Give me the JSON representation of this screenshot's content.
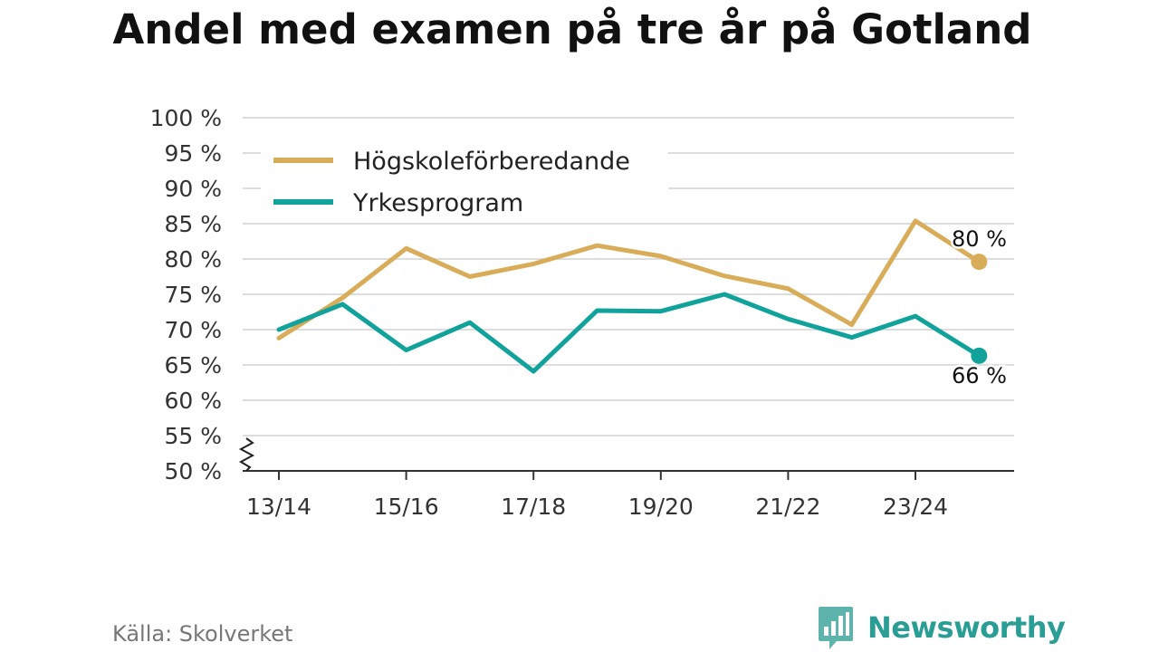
{
  "colors": {
    "series_1": "#d9ac59",
    "series_2": "#11a39b",
    "brand": "#2a9d94",
    "grid": "#dddddd",
    "axis": "#333333"
  },
  "chart_data": {
    "type": "line",
    "title": "Andel med examen på tre år på Gotland",
    "xlabel": "",
    "ylabel": "",
    "x": [
      "13/14",
      "14/15",
      "15/16",
      "16/17",
      "17/18",
      "18/19",
      "19/20",
      "20/21",
      "21/22",
      "22/23",
      "23/24",
      "24/25"
    ],
    "x_tick_labels": [
      "13/14",
      "15/16",
      "17/18",
      "19/20",
      "21/22",
      "23/24"
    ],
    "ylim": [
      50,
      100
    ],
    "y_ticks": [
      50,
      55,
      60,
      65,
      70,
      75,
      80,
      85,
      90,
      95,
      100
    ],
    "y_tick_labels": [
      "50 %",
      "55 %",
      "60 %",
      "65 %",
      "70 %",
      "75 %",
      "80 %",
      "85 %",
      "90 %",
      "95 %",
      "100 %"
    ],
    "grid": true,
    "y_axis_break": true,
    "legend_position": "top-left",
    "series": [
      {
        "name": "Högskoleförberedande",
        "color": "#d9ac59",
        "values": [
          68.8,
          74.5,
          81.5,
          77.5,
          79.3,
          81.9,
          80.4,
          77.6,
          75.8,
          70.7,
          85.4,
          79.6
        ],
        "end_label": "80 %"
      },
      {
        "name": "Yrkesprogram",
        "color": "#11a39b",
        "values": [
          70.0,
          73.6,
          67.1,
          71.0,
          64.1,
          72.7,
          72.6,
          75.0,
          71.5,
          68.9,
          71.9,
          66.3
        ],
        "end_label": "66 %"
      }
    ]
  },
  "footer": {
    "source": "Källa: Skolverket",
    "brand": "Newsworthy",
    "brand_icon": "newsworthy-logo-icon"
  }
}
